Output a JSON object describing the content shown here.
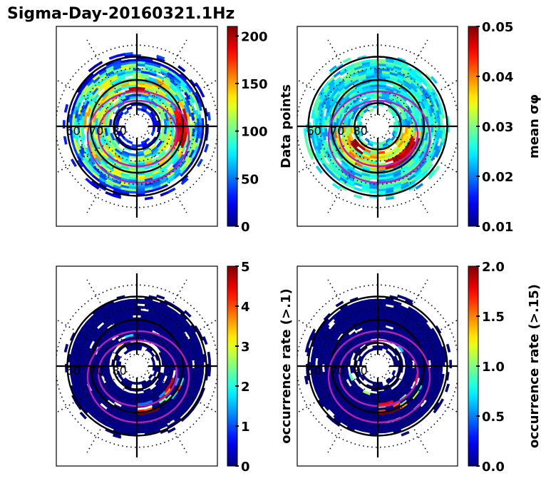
{
  "chart_data": {
    "type": "heatmap",
    "title": "Sigma-Day-20160321.1Hz",
    "projection": "polar (magnetic latitude / MLT), north pole centered",
    "latitude_labels": [
      "60",
      "70",
      "80"
    ],
    "latitude_circles_deg": [
      60,
      70,
      80
    ],
    "panels": [
      {
        "id": "data-points",
        "colorbar_label": "Data points",
        "colormap": "jet",
        "clim": [
          0,
          210
        ],
        "colorbar_ticks": [
          "0",
          "50",
          "100",
          "150",
          "200"
        ],
        "colorbar_tick_values": [
          0,
          50,
          100,
          150,
          200
        ],
        "description": "Counts per bin; mostly 20–120, hot spots ~200 near dusk/dawn side at ~70°",
        "hot_regions": [
          {
            "mlt_approx": 6,
            "lat_range": [
              68,
              72
            ],
            "value": 200
          },
          {
            "mlt_approx": 12,
            "lat_range": [
              72,
              74
            ],
            "value": 205
          }
        ]
      },
      {
        "id": "mean-sigma-phi",
        "colorbar_label": "mean σφ",
        "colormap": "jet",
        "clim": [
          0.01,
          0.05
        ],
        "colorbar_ticks": [
          "0.01",
          "0.02",
          "0.03",
          "0.04",
          "0.05"
        ],
        "colorbar_tick_values": [
          0.01,
          0.02,
          0.03,
          0.04,
          0.05
        ],
        "description": "Mostly 0.018–0.03; elevated (0.04–0.05) in auroral oval, strongest on night side near 70–75°",
        "hot_regions": [
          {
            "mlt_approx": 3,
            "lat_range": [
              70,
              74
            ],
            "value": 0.05
          },
          {
            "mlt_approx": 21,
            "lat_range": [
              75,
              78
            ],
            "value": 0.048
          }
        ]
      },
      {
        "id": "occurrence-01",
        "colorbar_label": "occurrence rate (>.1)",
        "colormap": "jet",
        "clim": [
          0,
          5
        ],
        "colorbar_ticks": [
          "0",
          "1",
          "2",
          "3",
          "4",
          "5"
        ],
        "colorbar_tick_values": [
          0,
          1,
          2,
          3,
          4,
          5
        ],
        "description": "Near 0 almost everywhere; enhancements 1–5 in post-midnight sector at ~68–74°",
        "hot_regions": [
          {
            "mlt_approx": 1,
            "lat_range": [
              68,
              70
            ],
            "value": 5
          },
          {
            "mlt_approx": 3,
            "lat_range": [
              68,
              72
            ],
            "value": 3
          }
        ]
      },
      {
        "id": "occurrence-015",
        "colorbar_label": "occurrence rate (>.15)",
        "colormap": "jet",
        "clim": [
          0,
          2
        ],
        "colorbar_ticks": [
          "0.0",
          "0.5",
          "1.0",
          "1.5",
          "2.0"
        ],
        "colorbar_tick_values": [
          0,
          0.5,
          1.0,
          1.5,
          2.0
        ],
        "description": "Near 0 almost everywhere; enhancements 0.5–2 in post-midnight sector at ~68–74°",
        "hot_regions": [
          {
            "mlt_approx": 1,
            "lat_range": [
              68,
              70
            ],
            "value": 2
          },
          {
            "mlt_approx": 3,
            "lat_range": [
              68,
              72
            ],
            "value": 1.5
          }
        ]
      }
    ]
  }
}
